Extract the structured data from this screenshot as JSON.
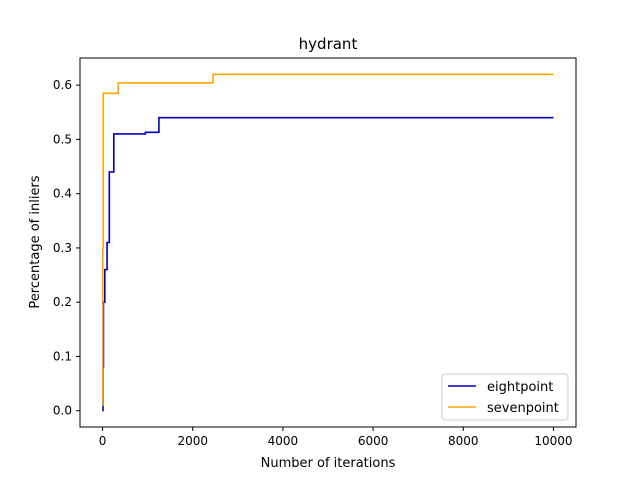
{
  "chart_data": {
    "type": "line",
    "title": "hydrant",
    "xlabel": "Number of iterations",
    "ylabel": "Percentage of inliers",
    "xlim": [
      -500,
      10500
    ],
    "ylim": [
      -0.03,
      0.65
    ],
    "xticks": [
      0,
      2000,
      4000,
      6000,
      8000,
      10000
    ],
    "xtick_labels": [
      "0",
      "2000",
      "4000",
      "6000",
      "8000",
      "10000"
    ],
    "yticks": [
      0.0,
      0.1,
      0.2,
      0.3,
      0.4,
      0.5,
      0.6
    ],
    "ytick_labels": [
      "0.0",
      "0.1",
      "0.2",
      "0.3",
      "0.4",
      "0.5",
      "0.6"
    ],
    "grid": false,
    "legend_position": "bottom-right",
    "step": true,
    "series": [
      {
        "name": "eightpoint",
        "color": "#0000bb",
        "x": [
          0,
          10,
          20,
          50,
          100,
          150,
          250,
          950,
          1250,
          10000
        ],
        "y": [
          0.0,
          0.08,
          0.2,
          0.26,
          0.31,
          0.44,
          0.51,
          0.513,
          0.54,
          0.54
        ]
      },
      {
        "name": "sevenpoint",
        "color": "#ffa500",
        "x": [
          0,
          5,
          15,
          350,
          2450,
          10000
        ],
        "y": [
          0.01,
          0.3,
          0.585,
          0.604,
          0.62,
          0.62
        ]
      }
    ]
  }
}
